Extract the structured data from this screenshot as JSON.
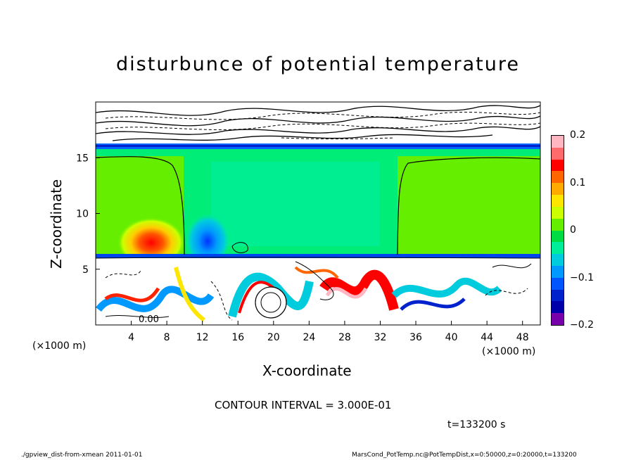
{
  "chart_data": {
    "type": "heatmap",
    "title": "disturbunce of potential temperature",
    "xlabel": "X-coordinate",
    "ylabel": "Z-coordinate",
    "x_unit_left": "(×1000 m)",
    "x_unit_right": "(×1000 m)",
    "x_ticks": [
      "4",
      "8",
      "12",
      "16",
      "20",
      "24",
      "28",
      "32",
      "36",
      "40",
      "44",
      "48"
    ],
    "y_ticks": [
      "5",
      "10",
      "15"
    ],
    "xlim": [
      0,
      50
    ],
    "ylim": [
      0,
      20
    ],
    "contour_label": "0.00",
    "colorbar": {
      "ticks": [
        "0.2",
        "0.1",
        "0",
        "−0.1",
        "−0.2"
      ],
      "range": [
        -0.2,
        0.2
      ],
      "colors": [
        "#ffb6c1",
        "#ff6b6b",
        "#ff0000",
        "#ff6600",
        "#ffaa00",
        "#ffe600",
        "#ccff00",
        "#66ee00",
        "#00dd44",
        "#00ee99",
        "#00ccdd",
        "#0099ff",
        "#0055ff",
        "#0022cc",
        "#0000aa",
        "#7700aa"
      ]
    }
  },
  "contour_interval": "CONTOUR INTERVAL = 3.000E-01",
  "time": "t=133200 s",
  "footer_left": "./gpview_dist-from-xmean   2011-01-01",
  "footer_right": "MarsCond_PotTemp.nc@PotTempDist,x=0:50000,z=0:20000,t=133200"
}
